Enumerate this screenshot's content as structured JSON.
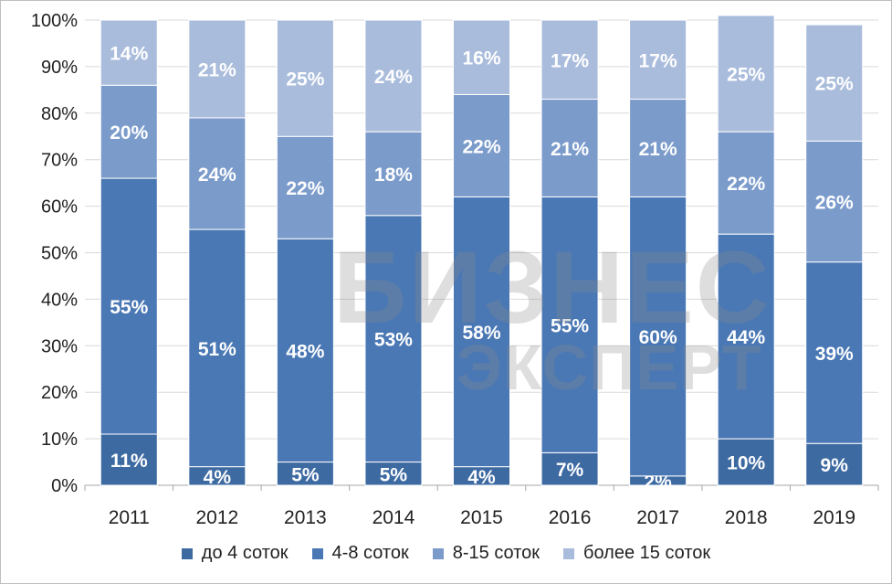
{
  "chart_data": {
    "type": "bar",
    "stacked": true,
    "percent": true,
    "categories": [
      "2011",
      "2012",
      "2013",
      "2014",
      "2015",
      "2016",
      "2017",
      "2018",
      "2019"
    ],
    "series": [
      {
        "name": "до 4 соток",
        "color": "#3e6aa2",
        "values": [
          11,
          4,
          5,
          5,
          4,
          7,
          2,
          10,
          9
        ]
      },
      {
        "name": "4-8 соток",
        "color": "#4a78b4",
        "values": [
          55,
          51,
          48,
          53,
          58,
          55,
          60,
          44,
          39
        ]
      },
      {
        "name": "8-15 соток",
        "color": "#7b9bcb",
        "values": [
          20,
          24,
          22,
          18,
          22,
          21,
          21,
          22,
          26
        ]
      },
      {
        "name": "более 15 соток",
        "color": "#a9bcdc",
        "values": [
          14,
          21,
          25,
          24,
          16,
          17,
          17,
          25,
          25
        ]
      }
    ],
    "y_ticks": [
      "0%",
      "10%",
      "20%",
      "30%",
      "40%",
      "50%",
      "60%",
      "70%",
      "80%",
      "90%",
      "100%"
    ],
    "ylim": [
      0,
      100
    ],
    "title": "",
    "xlabel": "",
    "ylabel": "",
    "legend_position": "bottom"
  },
  "watermark": {
    "line1": "БИЗНЕС",
    "line2": "ЭКСПЕРТ"
  }
}
